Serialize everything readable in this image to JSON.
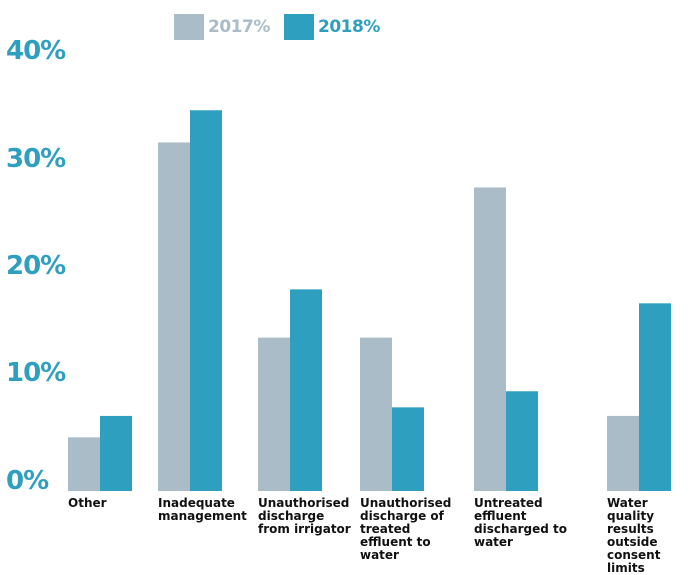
{
  "colors": {
    "s2017": "#a9bcc7",
    "s2018": "#2f9fc0",
    "axis_text": "#2f9fc0"
  },
  "chart_data": {
    "type": "bar",
    "title": "",
    "xlabel": "",
    "ylabel": "",
    "ylim": [
      0,
      40
    ],
    "y_ticks": [
      "0%",
      "10%",
      "20%",
      "30%",
      "40%"
    ],
    "categories": [
      "Other",
      "Inadequate management",
      "Unauthorised discharge from irrigator",
      "Unauthorised discharge of treated effluent to water",
      "Untreated effluent discharged to water",
      "Water quality results outside consent limits"
    ],
    "series": [
      {
        "name": "2017%",
        "values": [
          5,
          32.5,
          14.3,
          14.3,
          28.3,
          7
        ]
      },
      {
        "name": "2018%",
        "values": [
          7,
          35.5,
          18.8,
          7.8,
          9.3,
          17.5
        ]
      }
    ],
    "legend_position": "top-center",
    "grid": false
  }
}
